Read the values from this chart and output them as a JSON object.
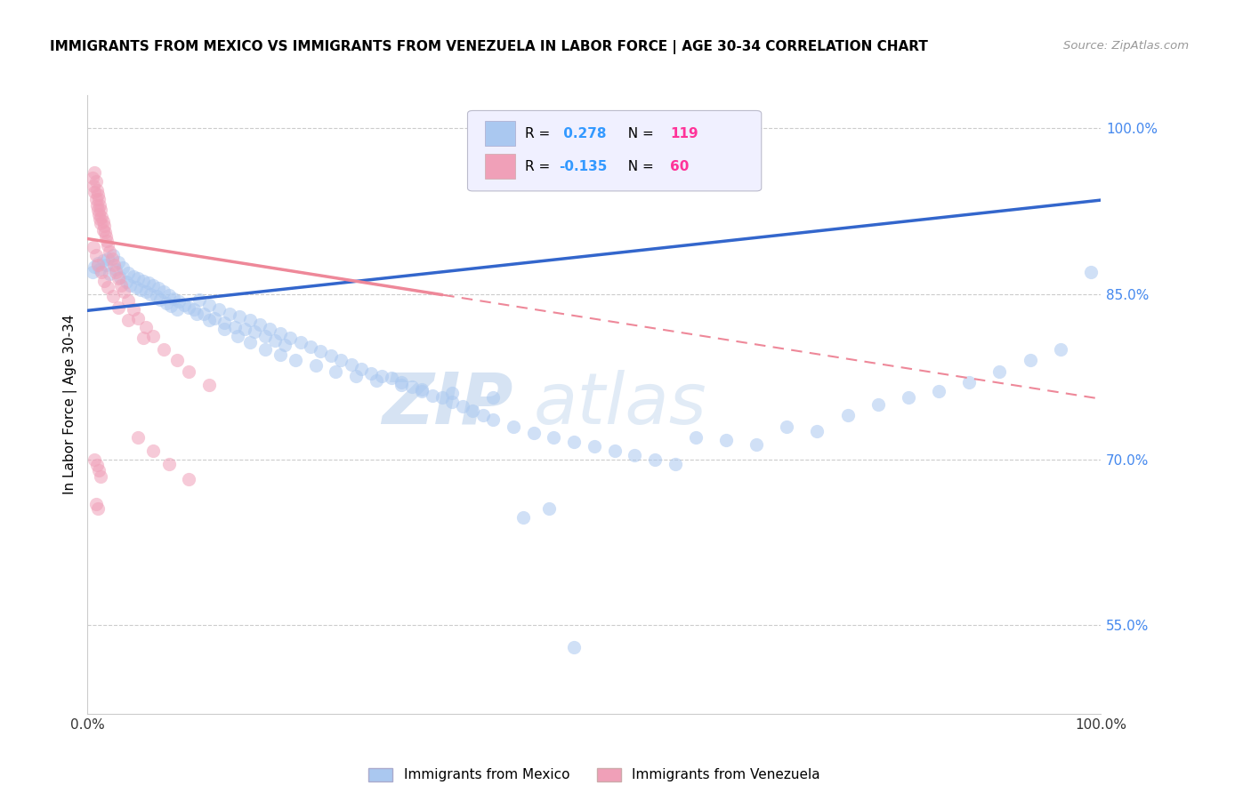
{
  "title": "IMMIGRANTS FROM MEXICO VS IMMIGRANTS FROM VENEZUELA IN LABOR FORCE | AGE 30-34 CORRELATION CHART",
  "source_text": "Source: ZipAtlas.com",
  "ylabel": "In Labor Force | Age 30-34",
  "xlim": [
    0.0,
    1.0
  ],
  "ylim": [
    0.47,
    1.03
  ],
  "y_ticks": [
    0.55,
    0.7,
    0.85,
    1.0
  ],
  "y_tick_labels": [
    "55.0%",
    "70.0%",
    "85.0%",
    "100.0%"
  ],
  "mexico_R": 0.278,
  "mexico_N": 119,
  "venezuela_R": -0.135,
  "venezuela_N": 60,
  "mexico_color": "#aac8f0",
  "venezuela_color": "#f0a0b8",
  "mexico_line_color": "#3366cc",
  "venezuela_line_color": "#ee8899",
  "watermark_zip": "ZIP",
  "watermark_atlas": "atlas",
  "legend_R_color": "#3399ff",
  "legend_N_color": "#ff3399",
  "legend_box_color": "#e8e8f8",
  "mexico_scatter_x": [
    0.005,
    0.007,
    0.01,
    0.012,
    0.015,
    0.018,
    0.02,
    0.022,
    0.025,
    0.028,
    0.03,
    0.032,
    0.035,
    0.038,
    0.04,
    0.042,
    0.045,
    0.048,
    0.05,
    0.052,
    0.055,
    0.058,
    0.06,
    0.062,
    0.065,
    0.068,
    0.07,
    0.072,
    0.075,
    0.078,
    0.08,
    0.082,
    0.085,
    0.088,
    0.09,
    0.095,
    0.1,
    0.105,
    0.11,
    0.115,
    0.12,
    0.125,
    0.13,
    0.135,
    0.14,
    0.145,
    0.15,
    0.155,
    0.16,
    0.165,
    0.17,
    0.175,
    0.18,
    0.185,
    0.19,
    0.195,
    0.2,
    0.21,
    0.22,
    0.23,
    0.24,
    0.25,
    0.26,
    0.27,
    0.28,
    0.29,
    0.3,
    0.31,
    0.32,
    0.33,
    0.34,
    0.35,
    0.36,
    0.37,
    0.38,
    0.39,
    0.4,
    0.42,
    0.44,
    0.46,
    0.48,
    0.5,
    0.52,
    0.54,
    0.56,
    0.58,
    0.6,
    0.63,
    0.66,
    0.69,
    0.72,
    0.75,
    0.78,
    0.81,
    0.84,
    0.87,
    0.9,
    0.93,
    0.96,
    0.99,
    0.43,
    0.455,
    0.48,
    0.4,
    0.36,
    0.33,
    0.31,
    0.285,
    0.265,
    0.245,
    0.225,
    0.205,
    0.19,
    0.175,
    0.16,
    0.148,
    0.135,
    0.12,
    0.108
  ],
  "mexico_scatter_y": [
    0.87,
    0.875,
    0.878,
    0.872,
    0.88,
    0.876,
    0.882,
    0.868,
    0.885,
    0.872,
    0.879,
    0.865,
    0.874,
    0.861,
    0.869,
    0.858,
    0.866,
    0.856,
    0.864,
    0.854,
    0.862,
    0.852,
    0.86,
    0.85,
    0.858,
    0.848,
    0.855,
    0.845,
    0.852,
    0.842,
    0.849,
    0.839,
    0.846,
    0.836,
    0.843,
    0.84,
    0.838,
    0.836,
    0.845,
    0.832,
    0.84,
    0.828,
    0.836,
    0.824,
    0.832,
    0.82,
    0.83,
    0.818,
    0.826,
    0.816,
    0.822,
    0.812,
    0.818,
    0.808,
    0.814,
    0.804,
    0.81,
    0.806,
    0.802,
    0.798,
    0.794,
    0.79,
    0.786,
    0.782,
    0.778,
    0.776,
    0.774,
    0.77,
    0.766,
    0.762,
    0.758,
    0.756,
    0.752,
    0.748,
    0.744,
    0.74,
    0.736,
    0.73,
    0.724,
    0.72,
    0.716,
    0.712,
    0.708,
    0.704,
    0.7,
    0.696,
    0.72,
    0.718,
    0.714,
    0.73,
    0.726,
    0.74,
    0.75,
    0.756,
    0.762,
    0.77,
    0.78,
    0.79,
    0.8,
    0.87,
    0.648,
    0.656,
    0.53,
    0.756,
    0.76,
    0.764,
    0.768,
    0.772,
    0.776,
    0.78,
    0.785,
    0.79,
    0.795,
    0.8,
    0.806,
    0.812,
    0.818,
    0.826,
    0.832
  ],
  "venezuela_scatter_x": [
    0.005,
    0.006,
    0.007,
    0.007,
    0.008,
    0.008,
    0.009,
    0.009,
    0.01,
    0.01,
    0.011,
    0.011,
    0.012,
    0.012,
    0.013,
    0.013,
    0.014,
    0.015,
    0.015,
    0.016,
    0.017,
    0.018,
    0.019,
    0.02,
    0.022,
    0.024,
    0.026,
    0.028,
    0.03,
    0.033,
    0.036,
    0.04,
    0.045,
    0.05,
    0.058,
    0.065,
    0.075,
    0.088,
    0.1,
    0.12,
    0.01,
    0.008,
    0.006,
    0.014,
    0.016,
    0.02,
    0.025,
    0.03,
    0.04,
    0.055,
    0.007,
    0.009,
    0.011,
    0.013,
    0.008,
    0.01,
    0.05,
    0.065,
    0.08,
    0.1
  ],
  "venezuela_scatter_y": [
    0.955,
    0.948,
    0.96,
    0.942,
    0.952,
    0.936,
    0.944,
    0.93,
    0.94,
    0.926,
    0.936,
    0.922,
    0.93,
    0.918,
    0.926,
    0.914,
    0.92,
    0.916,
    0.908,
    0.912,
    0.906,
    0.902,
    0.898,
    0.894,
    0.888,
    0.882,
    0.876,
    0.87,
    0.864,
    0.858,
    0.852,
    0.844,
    0.836,
    0.828,
    0.82,
    0.812,
    0.8,
    0.79,
    0.78,
    0.768,
    0.876,
    0.885,
    0.892,
    0.87,
    0.862,
    0.856,
    0.848,
    0.838,
    0.826,
    0.81,
    0.7,
    0.695,
    0.69,
    0.685,
    0.66,
    0.656,
    0.72,
    0.708,
    0.696,
    0.682
  ]
}
